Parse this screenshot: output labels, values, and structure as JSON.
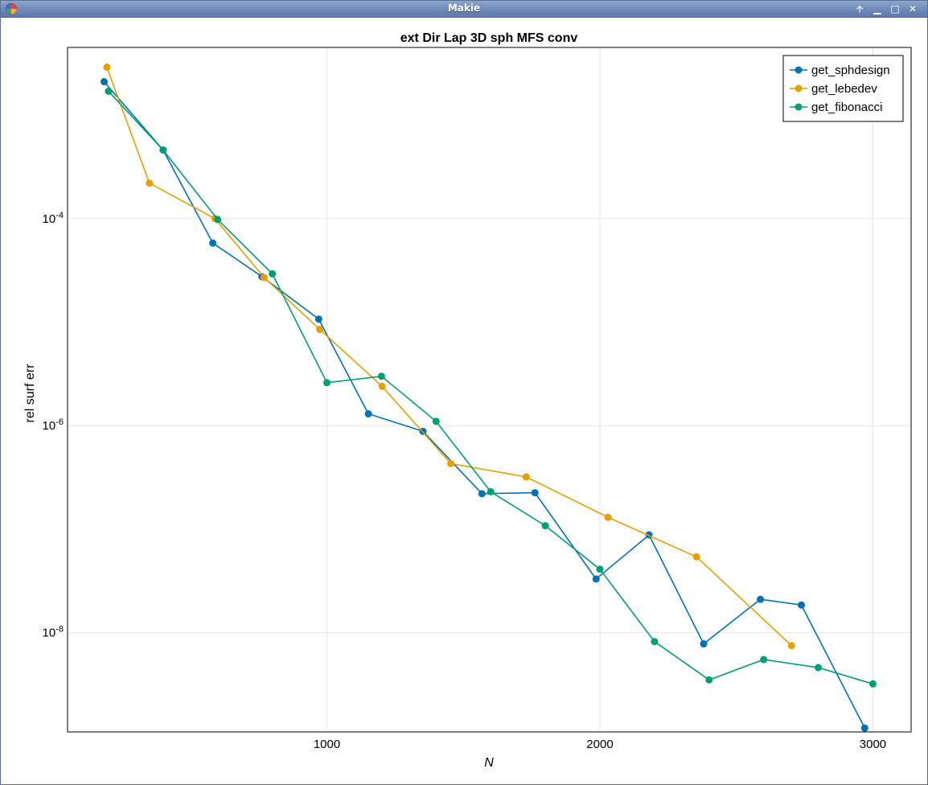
{
  "window": {
    "title": "Makie",
    "buttons": [
      {
        "name": "help-button",
        "glyph": "🡩"
      },
      {
        "name": "minimize-button",
        "glyph": "▁"
      },
      {
        "name": "maximize-button",
        "glyph": "□"
      },
      {
        "name": "close-button",
        "glyph": "✕"
      }
    ]
  },
  "chart_data": {
    "type": "line",
    "title": "ext Dir Lap 3D sph MFS conv",
    "xlabel": "N",
    "ylabel": "rel surf err",
    "xlim": [
      50,
      3140
    ],
    "ylim": [
      1.1e-09,
      0.0045
    ],
    "yscale": "log",
    "x_ticks": [
      {
        "value": 1000,
        "label": "1000"
      },
      {
        "value": 2000,
        "label": "2000"
      },
      {
        "value": 3000,
        "label": "3000"
      }
    ],
    "y_ticks": [
      {
        "value": 0.0001,
        "base": "10",
        "exp": "-4"
      },
      {
        "value": 1e-06,
        "base": "10",
        "exp": "-6"
      },
      {
        "value": 1e-08,
        "base": "10",
        "exp": "-8"
      }
    ],
    "grid": true,
    "legend_position": "top-right",
    "series": [
      {
        "name": "get_sphdesign",
        "color": "#0072b2",
        "x": [
          184,
          400,
          582,
          762,
          970,
          1152,
          1352,
          1568,
          1762,
          1986,
          2180,
          2380,
          2588,
          2738,
          2970
        ],
        "y": [
          0.0021,
          0.00046,
          5.8e-05,
          2.75e-05,
          1.07e-05,
          1.3e-06,
          8.8e-07,
          2.2e-07,
          2.25e-07,
          3.3e-08,
          8.8e-08,
          7.8e-09,
          2.1e-08,
          1.85e-08,
          1.2e-09
        ]
      },
      {
        "name": "get_lebedev",
        "color": "#e69f00",
        "x": [
          194,
          350,
          590,
          770,
          974,
          1202,
          1454,
          1730,
          2030,
          2354,
          2702
        ],
        "y": [
          0.0029,
          0.00022,
          0.0001,
          2.7e-05,
          8.5e-06,
          2.4e-06,
          4.3e-07,
          3.2e-07,
          1.3e-07,
          5.4e-08,
          7.5e-09
        ]
      },
      {
        "name": "get_fibonacci",
        "color": "#009e73",
        "x": [
          200,
          400,
          600,
          800,
          1000,
          1200,
          1400,
          1600,
          1800,
          2000,
          2200,
          2400,
          2600,
          2800,
          3000
        ],
        "y": [
          0.0017,
          0.00046,
          9.8e-05,
          2.93e-05,
          2.6e-06,
          3e-06,
          1.1e-06,
          2.3e-07,
          1.08e-07,
          4.1e-08,
          8.2e-09,
          3.5e-09,
          5.5e-09,
          4.6e-09,
          3.2e-09
        ]
      }
    ]
  }
}
